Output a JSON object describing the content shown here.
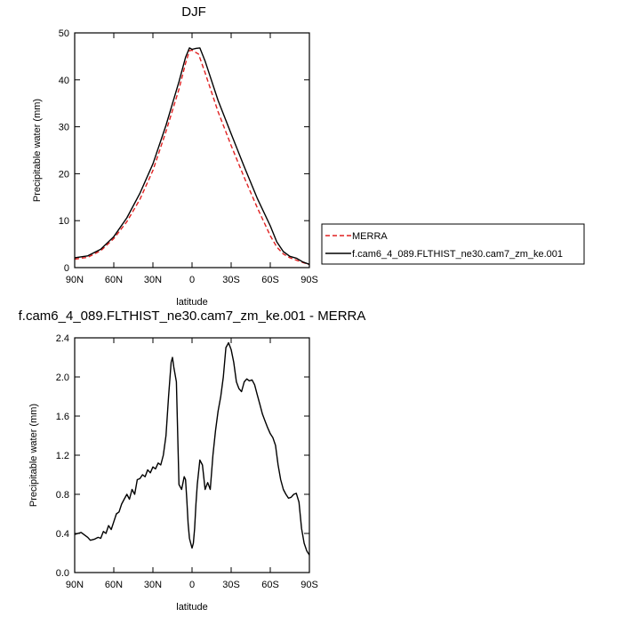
{
  "chart_data": [
    {
      "type": "line",
      "title": "DJF",
      "xlabel": "latitude",
      "ylabel": "Precipitable water (mm)",
      "xlim": [
        90,
        -90
      ],
      "ylim": [
        0,
        50
      ],
      "xtick_values": [
        90,
        60,
        30,
        0,
        -30,
        -60,
        -90
      ],
      "xtick_labels": [
        "90N",
        "60N",
        "30N",
        "0",
        "30S",
        "60S",
        "90S"
      ],
      "ytick_values": [
        0,
        10,
        20,
        30,
        40,
        50
      ],
      "ytick_labels": [
        "0",
        "10",
        "20",
        "30",
        "40",
        "50"
      ],
      "legend_position": "right",
      "series": [
        {
          "name": "MERRA",
          "color": "#e02020",
          "dash": "dashed",
          "x": [
            90,
            80,
            70,
            60,
            50,
            40,
            30,
            20,
            10,
            5,
            2,
            0,
            -5,
            -10,
            -20,
            -30,
            -40,
            -50,
            -60,
            -65,
            -70,
            -75,
            -80,
            -85,
            -90
          ],
          "y": [
            1.8,
            2.2,
            3.6,
            6.2,
            9.8,
            14.5,
            20.7,
            29,
            38,
            43.5,
            46.2,
            46.3,
            45.5,
            41.5,
            33.2,
            26,
            19.2,
            12.8,
            6.8,
            4.4,
            2.9,
            2.1,
            1.6,
            1.1,
            0.6
          ]
        },
        {
          "name": "f.cam6_4_089.FLTHIST_ne30.cam7_zm_ke.001",
          "color": "#000000",
          "dash": "solid",
          "x": [
            90,
            80,
            70,
            60,
            50,
            40,
            30,
            20,
            10,
            5,
            2,
            0,
            -3,
            -6,
            -10,
            -20,
            -30,
            -40,
            -50,
            -60,
            -65,
            -70,
            -75,
            -80,
            -85,
            -90
          ],
          "y": [
            2.1,
            2.5,
            3.9,
            6.6,
            10.6,
            15.8,
            22.1,
            30.3,
            39.6,
            44.8,
            46.8,
            46.5,
            46.7,
            46.8,
            44,
            35.6,
            28.5,
            21.5,
            14.8,
            8.9,
            5.5,
            3.4,
            2.4,
            2,
            1.2,
            0.7
          ]
        }
      ]
    },
    {
      "type": "line",
      "title": "f.cam6_4_089.FLTHIST_ne30.cam7_zm_ke.001 - MERRA",
      "xlabel": "latitude",
      "ylabel": "Precipitable water (mm)",
      "xlim": [
        90,
        -90
      ],
      "ylim": [
        0,
        2.4
      ],
      "xtick_values": [
        90,
        60,
        30,
        0,
        -30,
        -60,
        -90
      ],
      "xtick_labels": [
        "90N",
        "60N",
        "30N",
        "0",
        "30S",
        "60S",
        "90S"
      ],
      "ytick_values": [
        0,
        0.4,
        0.8,
        1.2,
        1.6,
        2.0,
        2.4
      ],
      "ytick_labels": [
        "0.0",
        "0.4",
        "0.8",
        "1.2",
        "1.6",
        "2.0",
        "2.4"
      ],
      "series": [
        {
          "color": "#000000",
          "dash": "solid",
          "x": [
            90,
            85,
            80,
            78,
            75,
            72,
            70,
            68,
            66,
            64,
            62,
            60,
            58,
            56,
            54,
            52,
            50,
            48,
            46,
            44,
            42,
            40,
            38,
            36,
            34,
            32,
            30,
            28,
            26,
            24,
            22,
            20,
            18,
            16,
            15,
            14,
            12,
            10,
            8,
            6,
            5,
            4,
            3,
            2,
            1,
            0,
            -1,
            -2,
            -3,
            -4,
            -6,
            -8,
            -10,
            -12,
            -14,
            -16,
            -18,
            -20,
            -22,
            -24,
            -26,
            -28,
            -30,
            -32,
            -34,
            -36,
            -38,
            -40,
            -42,
            -44,
            -46,
            -48,
            -50,
            -52,
            -54,
            -56,
            -58,
            -60,
            -62,
            -64,
            -66,
            -68,
            -70,
            -72,
            -74,
            -76,
            -78,
            -80,
            -82,
            -84,
            -86,
            -88,
            -90
          ],
          "y": [
            0.39,
            0.41,
            0.36,
            0.33,
            0.34,
            0.36,
            0.35,
            0.42,
            0.4,
            0.48,
            0.44,
            0.52,
            0.6,
            0.62,
            0.7,
            0.75,
            0.8,
            0.75,
            0.85,
            0.8,
            0.95,
            0.96,
            1.0,
            0.98,
            1.05,
            1.02,
            1.08,
            1.06,
            1.12,
            1.1,
            1.2,
            1.4,
            1.8,
            2.15,
            2.2,
            2.1,
            1.95,
            0.9,
            0.85,
            0.98,
            0.95,
            0.75,
            0.5,
            0.35,
            0.3,
            0.25,
            0.3,
            0.45,
            0.7,
            0.9,
            1.15,
            1.1,
            0.85,
            0.92,
            0.85,
            1.2,
            1.45,
            1.65,
            1.8,
            2.0,
            2.3,
            2.35,
            2.28,
            2.15,
            1.95,
            1.88,
            1.85,
            1.95,
            1.98,
            1.96,
            1.97,
            1.92,
            1.82,
            1.72,
            1.62,
            1.55,
            1.48,
            1.42,
            1.38,
            1.3,
            1.1,
            0.95,
            0.85,
            0.8,
            0.76,
            0.77,
            0.8,
            0.81,
            0.72,
            0.45,
            0.3,
            0.22,
            0.18
          ]
        }
      ]
    }
  ]
}
